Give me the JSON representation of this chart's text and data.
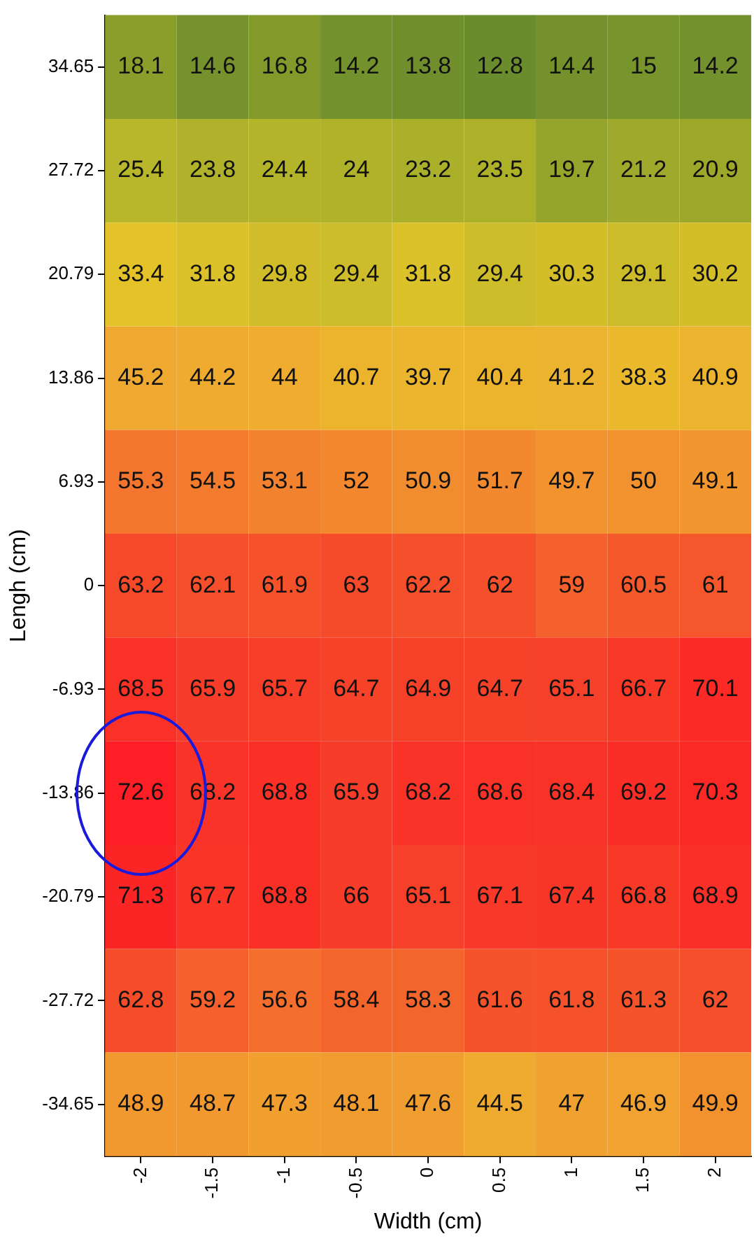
{
  "chart_data": {
    "type": "heatmap",
    "xlabel": "Width (cm)",
    "ylabel": "Lengh (cm)",
    "categories": [
      "-2",
      "-1.5",
      "-1",
      "-0.5",
      "0",
      "0.5",
      "1",
      "1.5",
      "2"
    ],
    "y_categories": [
      "34.65",
      "27.72",
      "20.79",
      "13.86",
      "6.93",
      "0",
      "-6.93",
      "-13.86",
      "-20.79",
      "-27.72",
      "-34.65"
    ],
    "cells": [
      [
        18.1,
        14.6,
        16.8,
        14.2,
        13.8,
        12.8,
        14.4,
        15,
        14.2
      ],
      [
        25.4,
        23.8,
        24.4,
        24,
        23.2,
        23.5,
        19.7,
        21.2,
        20.9
      ],
      [
        33.4,
        31.8,
        29.8,
        29.4,
        31.8,
        29.4,
        30.3,
        29.1,
        30.2
      ],
      [
        45.2,
        44.2,
        44,
        40.7,
        39.7,
        40.4,
        41.2,
        38.3,
        40.9
      ],
      [
        55.3,
        54.5,
        53.1,
        52,
        50.9,
        51.7,
        49.7,
        50,
        49.1
      ],
      [
        63.2,
        62.1,
        61.9,
        63,
        62.2,
        62,
        59,
        60.5,
        61
      ],
      [
        68.5,
        65.9,
        65.7,
        64.7,
        64.9,
        64.7,
        65.1,
        66.7,
        70.1
      ],
      [
        72.6,
        68.2,
        68.8,
        65.9,
        68.2,
        68.6,
        68.4,
        69.2,
        70.3
      ],
      [
        71.3,
        67.7,
        68.8,
        66,
        65.1,
        67.1,
        67.4,
        66.8,
        68.9
      ],
      [
        62.8,
        59.2,
        56.6,
        58.4,
        58.3,
        61.6,
        61.8,
        61.3,
        62
      ],
      [
        48.9,
        48.7,
        47.3,
        48.1,
        47.6,
        44.5,
        47,
        46.9,
        49.9
      ]
    ],
    "data_labels": true
  }
}
